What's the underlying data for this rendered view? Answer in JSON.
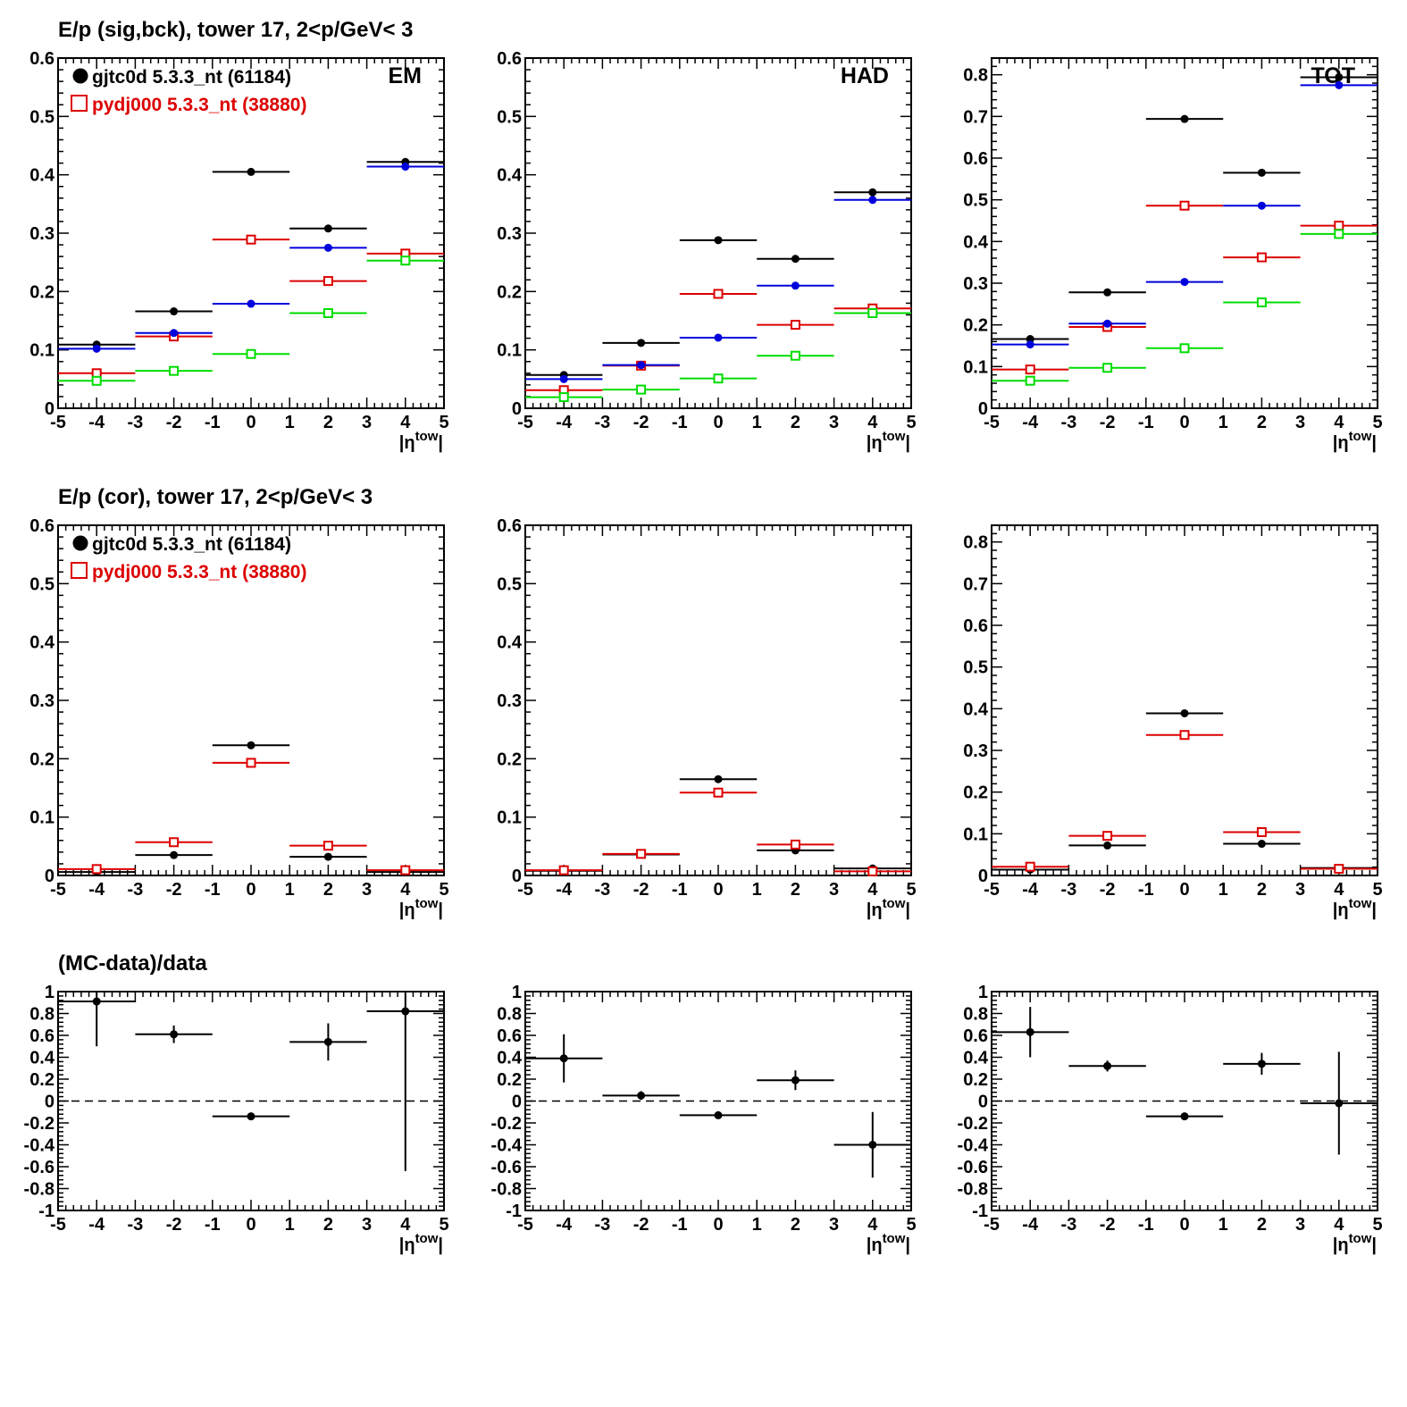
{
  "rows": [
    {
      "title": "E/p (sig,bck), tower 17,  2<p/GeV< 3"
    },
    {
      "title": "E/p (cor), tower 17,  2<p/GeV< 3"
    },
    {
      "title": "(MC-data)/data"
    }
  ],
  "legend": {
    "data_label": "gjtc0d 5.3.3_nt (61184)",
    "mc_label": "pydj000 5.3.3_nt (38880)"
  },
  "colors": {
    "data": "#000000",
    "mc": "#dd0000",
    "blue": "#0000dd",
    "green": "#00dd00",
    "axis": "#000000"
  },
  "chart_data": [
    {
      "id": "em-sigbck",
      "type": "scatter",
      "row": 0,
      "col": 0,
      "panel_label": "EM",
      "title": "E/p (sig,bck), tower 17,  2<p/GeV< 3",
      "xlabel": "|ηtow|",
      "ylabel": "",
      "xlim": [
        -5,
        5
      ],
      "ylim": [
        0,
        0.6
      ],
      "xticks": [
        -5,
        -4,
        -3,
        -2,
        -1,
        0,
        1,
        2,
        3,
        4,
        5
      ],
      "yticks": [
        0,
        0.1,
        0.2,
        0.3,
        0.4,
        0.5,
        0.6
      ],
      "legend": true,
      "legend_position": "top-left",
      "series": [
        {
          "key": "black",
          "name": "gjtc0d 5.3.3_nt (61184)",
          "marker": "filled-circle",
          "x": [
            -4,
            -2,
            0,
            2,
            4
          ],
          "xerr": 1,
          "y": [
            0.109,
            0.166,
            0.405,
            0.308,
            0.422
          ]
        },
        {
          "key": "red",
          "name": "pydj000 5.3.3_nt (38880)",
          "marker": "open-square",
          "x": [
            -4,
            -2,
            0,
            2,
            4
          ],
          "xerr": 1,
          "y": [
            0.06,
            0.123,
            0.289,
            0.218,
            0.265
          ]
        },
        {
          "key": "blue",
          "marker": "filled-circle",
          "x": [
            -4,
            -2,
            0,
            2,
            4
          ],
          "xerr": 1,
          "y": [
            0.102,
            0.129,
            0.179,
            0.275,
            0.414
          ]
        },
        {
          "key": "green",
          "marker": "open-square",
          "x": [
            -4,
            -2,
            0,
            2,
            4
          ],
          "xerr": 1,
          "y": [
            0.047,
            0.064,
            0.093,
            0.163,
            0.253
          ]
        }
      ]
    },
    {
      "id": "had-sigbck",
      "type": "scatter",
      "row": 0,
      "col": 1,
      "panel_label": "HAD",
      "xlabel": "|ηtow|",
      "ylabel": "",
      "xlim": [
        -5,
        5
      ],
      "ylim": [
        0,
        0.6
      ],
      "xticks": [
        -5,
        -4,
        -3,
        -2,
        -1,
        0,
        1,
        2,
        3,
        4,
        5
      ],
      "yticks": [
        0,
        0.1,
        0.2,
        0.3,
        0.4,
        0.5,
        0.6
      ],
      "series": [
        {
          "key": "black",
          "marker": "filled-circle",
          "x": [
            -4,
            -2,
            0,
            2,
            4
          ],
          "xerr": 1,
          "y": [
            0.057,
            0.112,
            0.288,
            0.256,
            0.37
          ]
        },
        {
          "key": "red",
          "marker": "open-square",
          "x": [
            -4,
            -2,
            0,
            2,
            4
          ],
          "xerr": 1,
          "y": [
            0.031,
            0.073,
            0.196,
            0.143,
            0.171
          ]
        },
        {
          "key": "blue",
          "marker": "filled-circle",
          "x": [
            -4,
            -2,
            0,
            2,
            4
          ],
          "xerr": 1,
          "y": [
            0.05,
            0.074,
            0.121,
            0.21,
            0.357
          ]
        },
        {
          "key": "green",
          "marker": "open-square",
          "x": [
            -4,
            -2,
            0,
            2,
            4
          ],
          "xerr": 1,
          "y": [
            0.019,
            0.032,
            0.051,
            0.09,
            0.163
          ]
        }
      ]
    },
    {
      "id": "tot-sigbck",
      "type": "scatter",
      "row": 0,
      "col": 2,
      "panel_label": "TOT",
      "xlabel": "|ηtow|",
      "ylabel": "",
      "xlim": [
        -5,
        5
      ],
      "ylim": [
        0,
        0.84
      ],
      "xticks": [
        -5,
        -4,
        -3,
        -2,
        -1,
        0,
        1,
        2,
        3,
        4,
        5
      ],
      "yticks": [
        0,
        0.1,
        0.2,
        0.3,
        0.4,
        0.5,
        0.6,
        0.7,
        0.8
      ],
      "series": [
        {
          "key": "black",
          "marker": "filled-circle",
          "x": [
            -4,
            -2,
            0,
            2,
            4
          ],
          "xerr": 1,
          "y": [
            0.166,
            0.278,
            0.694,
            0.565,
            0.794
          ]
        },
        {
          "key": "red",
          "marker": "open-square",
          "x": [
            -4,
            -2,
            0,
            2,
            4
          ],
          "xerr": 1,
          "y": [
            0.093,
            0.195,
            0.486,
            0.362,
            0.438
          ]
        },
        {
          "key": "blue",
          "marker": "filled-circle",
          "x": [
            -4,
            -2,
            0,
            2,
            4
          ],
          "xerr": 1,
          "y": [
            0.153,
            0.203,
            0.303,
            0.486,
            0.775
          ]
        },
        {
          "key": "green",
          "marker": "open-square",
          "x": [
            -4,
            -2,
            0,
            2,
            4
          ],
          "xerr": 1,
          "y": [
            0.066,
            0.097,
            0.144,
            0.254,
            0.418
          ]
        }
      ]
    },
    {
      "id": "em-cor",
      "type": "scatter",
      "row": 1,
      "col": 0,
      "title": "E/p (cor), tower 17,  2<p/GeV< 3",
      "xlabel": "|ηtow|",
      "ylabel": "",
      "xlim": [
        -5,
        5
      ],
      "ylim": [
        0,
        0.6
      ],
      "xticks": [
        -5,
        -4,
        -3,
        -2,
        -1,
        0,
        1,
        2,
        3,
        4,
        5
      ],
      "yticks": [
        0,
        0.1,
        0.2,
        0.3,
        0.4,
        0.5,
        0.6
      ],
      "legend": true,
      "legend_position": "top-left",
      "series": [
        {
          "key": "black",
          "name": "gjtc0d 5.3.3_nt (61184)",
          "marker": "filled-circle",
          "x": [
            -4,
            -2,
            0,
            2,
            4
          ],
          "xerr": 1,
          "y": [
            0.006,
            0.035,
            0.223,
            0.032,
            0.006
          ]
        },
        {
          "key": "red",
          "name": "pydj000 5.3.3_nt (38880)",
          "marker": "open-square",
          "x": [
            -4,
            -2,
            0,
            2,
            4
          ],
          "xerr": 1,
          "y": [
            0.011,
            0.057,
            0.193,
            0.051,
            0.009
          ]
        }
      ]
    },
    {
      "id": "had-cor",
      "type": "scatter",
      "row": 1,
      "col": 1,
      "xlabel": "|ηtow|",
      "ylabel": "",
      "xlim": [
        -5,
        5
      ],
      "ylim": [
        0,
        0.6
      ],
      "xticks": [
        -5,
        -4,
        -3,
        -2,
        -1,
        0,
        1,
        2,
        3,
        4,
        5
      ],
      "yticks": [
        0,
        0.1,
        0.2,
        0.3,
        0.4,
        0.5,
        0.6
      ],
      "series": [
        {
          "key": "black",
          "marker": "filled-circle",
          "x": [
            -4,
            -2,
            0,
            2,
            4
          ],
          "xerr": 1,
          "y": [
            0.008,
            0.036,
            0.165,
            0.043,
            0.012
          ]
        },
        {
          "key": "red",
          "marker": "open-square",
          "x": [
            -4,
            -2,
            0,
            2,
            4
          ],
          "xerr": 1,
          "y": [
            0.009,
            0.037,
            0.142,
            0.053,
            0.007
          ]
        }
      ]
    },
    {
      "id": "tot-cor",
      "type": "scatter",
      "row": 1,
      "col": 2,
      "xlabel": "|ηtow|",
      "ylabel": "",
      "xlim": [
        -5,
        5
      ],
      "ylim": [
        0,
        0.84
      ],
      "xticks": [
        -5,
        -4,
        -3,
        -2,
        -1,
        0,
        1,
        2,
        3,
        4,
        5
      ],
      "yticks": [
        0,
        0.1,
        0.2,
        0.3,
        0.4,
        0.5,
        0.6,
        0.7,
        0.8
      ],
      "series": [
        {
          "key": "black",
          "marker": "filled-circle",
          "x": [
            -4,
            -2,
            0,
            2,
            4
          ],
          "xerr": 1,
          "y": [
            0.014,
            0.072,
            0.389,
            0.076,
            0.018
          ]
        },
        {
          "key": "red",
          "marker": "open-square",
          "x": [
            -4,
            -2,
            0,
            2,
            4
          ],
          "xerr": 1,
          "y": [
            0.021,
            0.095,
            0.337,
            0.104,
            0.016
          ]
        }
      ]
    },
    {
      "id": "em-ratio",
      "type": "scatter",
      "row": 2,
      "col": 0,
      "title": "(MC-data)/data",
      "xlabel": "|ηtow|",
      "ylabel": "",
      "xlim": [
        -5,
        5
      ],
      "ylim": [
        -1,
        1
      ],
      "xticks": [
        -5,
        -4,
        -3,
        -2,
        -1,
        0,
        1,
        2,
        3,
        4,
        5
      ],
      "yticks": [
        -1,
        -0.8,
        -0.6,
        -0.4,
        -0.2,
        0,
        0.2,
        0.4,
        0.6,
        0.8,
        1
      ],
      "reference_line": 0,
      "series": [
        {
          "key": "black",
          "marker": "filled-circle",
          "x": [
            -4,
            -2,
            0,
            2,
            4
          ],
          "xerr": 1,
          "y": [
            0.91,
            0.61,
            -0.14,
            0.54,
            0.82
          ],
          "yerr": [
            0.41,
            0.08,
            0.02,
            0.17,
            1.46
          ]
        }
      ]
    },
    {
      "id": "had-ratio",
      "type": "scatter",
      "row": 2,
      "col": 1,
      "xlabel": "|ηtow|",
      "ylabel": "",
      "xlim": [
        -5,
        5
      ],
      "ylim": [
        -1,
        1
      ],
      "xticks": [
        -5,
        -4,
        -3,
        -2,
        -1,
        0,
        1,
        2,
        3,
        4,
        5
      ],
      "yticks": [
        -1,
        -0.8,
        -0.6,
        -0.4,
        -0.2,
        0,
        0.2,
        0.4,
        0.6,
        0.8,
        1
      ],
      "reference_line": 0,
      "series": [
        {
          "key": "black",
          "marker": "filled-circle",
          "x": [
            -4,
            -2,
            0,
            2,
            4
          ],
          "xerr": 1,
          "y": [
            0.39,
            0.05,
            -0.13,
            0.19,
            -0.4
          ],
          "yerr": [
            0.22,
            0.04,
            0.02,
            0.09,
            0.3
          ]
        }
      ]
    },
    {
      "id": "tot-ratio",
      "type": "scatter",
      "row": 2,
      "col": 2,
      "xlabel": "|ηtow|",
      "ylabel": "",
      "xlim": [
        -5,
        5
      ],
      "ylim": [
        -1,
        1
      ],
      "xticks": [
        -5,
        -4,
        -3,
        -2,
        -1,
        0,
        1,
        2,
        3,
        4,
        5
      ],
      "yticks": [
        -1,
        -0.8,
        -0.6,
        -0.4,
        -0.2,
        0,
        0.2,
        0.4,
        0.6,
        0.8,
        1
      ],
      "reference_line": 0,
      "series": [
        {
          "key": "black",
          "marker": "filled-circle",
          "x": [
            -4,
            -2,
            0,
            2,
            4
          ],
          "xerr": 1,
          "y": [
            0.63,
            0.32,
            -0.14,
            0.34,
            -0.02
          ],
          "yerr": [
            0.23,
            0.05,
            0.02,
            0.1,
            0.47
          ]
        }
      ]
    }
  ]
}
